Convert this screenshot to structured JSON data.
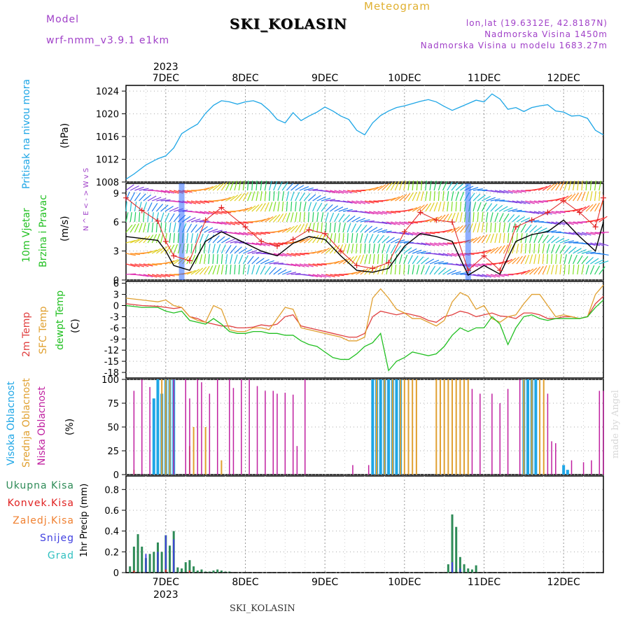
{
  "header": {
    "model_label": "Model",
    "model_name": "wrf-nmm_v3.9.1  e1km",
    "title": "SKI_KOLASIN",
    "meteogram_label": "Meteogram",
    "lonlat": "lon,lat (19.6312E, 42.8187N)",
    "altitude": "Nadmorska Visina 1450m",
    "model_altitude": "Nadmorska Visina u modelu 1683.27m"
  },
  "footer": {
    "station": "SKI_KOLASIN"
  },
  "watermark": "made by Angel",
  "colors": {
    "pressure": "#1ea6e6",
    "wind_gust": "#e02020",
    "wind_mean": "#000000",
    "temp_2m": "#e04040",
    "temp_sfc": "#e0a030",
    "dewpoint": "#22c022",
    "cloud_high": "#1ea6e6",
    "cloud_mid": "#e0a030",
    "cloud_low": "#c020a0",
    "precip_total": "#2e8b57",
    "precip_conv": "#e02020",
    "precip_frz": "#f08030",
    "precip_snow": "#4040e0",
    "precip_hail": "#30c0c0",
    "label_purple": "#a040c8"
  },
  "chart_data": [
    {
      "type": "line",
      "panel": "pressure",
      "ylabel": "Pritisak na nivou mora",
      "unit": "(hPa)",
      "yticks": [
        "1008",
        "1012",
        "1016",
        "1020",
        "1024"
      ],
      "ylim": [
        1008,
        1025
      ],
      "x_top_labels": [
        "7DEC",
        "8DEC",
        "9DEC",
        "10DEC",
        "11DEC",
        "12DEC"
      ],
      "x_top_year": "2023",
      "x": [
        6.5,
        6.6,
        6.75,
        6.9,
        7.0,
        7.1,
        7.2,
        7.3,
        7.4,
        7.5,
        7.6,
        7.7,
        7.8,
        7.9,
        8.0,
        8.1,
        8.2,
        8.3,
        8.4,
        8.5,
        8.6,
        8.7,
        8.8,
        8.9,
        9.0,
        9.1,
        9.2,
        9.3,
        9.4,
        9.5,
        9.6,
        9.7,
        9.8,
        9.9,
        10.0,
        10.1,
        10.2,
        10.3,
        10.4,
        10.5,
        10.6,
        10.7,
        10.8,
        10.9,
        11.0,
        11.1,
        11.2,
        11.3,
        11.4,
        11.5,
        11.6,
        11.7,
        11.8,
        11.9,
        12.0,
        12.1,
        12.2,
        12.3,
        12.4,
        12.5
      ],
      "series": [
        {
          "values": [
            1008.5,
            1009.4,
            1011,
            1012.1,
            1012.6,
            1014,
            1016.5,
            1017.4,
            1018.2,
            1020.1,
            1021.5,
            1022.3,
            1022.1,
            1021.7,
            1022.1,
            1022.3,
            1021.8,
            1020.6,
            1019,
            1018.4,
            1020.2,
            1018.8,
            1019.6,
            1020.3,
            1021.2,
            1020.5,
            1019.6,
            1019,
            1017.1,
            1016.3,
            1018.4,
            1019.7,
            1020.5,
            1021.1,
            1021.4,
            1021.8,
            1022.2,
            1022.5,
            1022.1,
            1021.3,
            1020.6,
            1021.2,
            1021.8,
            1022.4,
            1022.1,
            1023.5,
            1022.6,
            1020.8,
            1021.1,
            1020.4,
            1021.1,
            1021.4,
            1021.6,
            1020.5,
            1020.3,
            1019.6,
            1019.7,
            1019.2,
            1017.1,
            1016.3
          ]
        }
      ]
    },
    {
      "type": "line",
      "panel": "wind",
      "ylabel": "10m Vjetar",
      "ylabel2": "Brzina i Pravac",
      "unit": "(m/s)",
      "compass": "N ^ E < - > W v S",
      "yticks": [
        "0",
        "3",
        "6",
        "9"
      ],
      "ylim": [
        0,
        10
      ],
      "x": [
        6.5,
        6.7,
        6.9,
        7.0,
        7.1,
        7.3,
        7.5,
        7.7,
        8.0,
        8.2,
        8.4,
        8.6,
        8.8,
        9.0,
        9.2,
        9.4,
        9.6,
        9.8,
        10.0,
        10.2,
        10.4,
        10.6,
        10.8,
        11.0,
        11.2,
        11.4,
        11.6,
        11.8,
        12.0,
        12.2,
        12.4,
        12.5
      ],
      "series": [
        {
          "name": "gust",
          "values": [
            8.5,
            7.2,
            6.1,
            4,
            2.5,
            2,
            6.2,
            7.5,
            5.5,
            4,
            3.5,
            4.2,
            5.2,
            4.8,
            3,
            1.5,
            1.2,
            1.8,
            5,
            7,
            6.2,
            6,
            1,
            2.5,
            1,
            5.5,
            6.2,
            7,
            8.2,
            7,
            5.5,
            8.5
          ]
        },
        {
          "name": "mean",
          "values": [
            4.5,
            4.3,
            4.1,
            3,
            1.5,
            1,
            4,
            5,
            3.8,
            3,
            2.5,
            3.8,
            4.5,
            4.2,
            2.5,
            1,
            0.8,
            1.2,
            3.5,
            4.8,
            4.5,
            4,
            0.5,
            1.5,
            0.6,
            4,
            4.7,
            5,
            6.2,
            4.5,
            3,
            6
          ]
        }
      ]
    },
    {
      "type": "line",
      "panel": "temperature",
      "labels": [
        "2m Temp",
        "SFC Temp",
        "dewpt Temp"
      ],
      "unit": "(C)",
      "yticks": [
        "-18",
        "-15",
        "-12",
        "-9",
        "-6",
        "-3",
        "0",
        "3",
        "6"
      ],
      "ylim": [
        -19.5,
        6.5
      ],
      "x": [
        6.5,
        6.7,
        6.9,
        7.0,
        7.1,
        7.2,
        7.3,
        7.4,
        7.5,
        7.6,
        7.7,
        7.8,
        7.9,
        8.0,
        8.1,
        8.2,
        8.3,
        8.4,
        8.5,
        8.6,
        8.7,
        8.8,
        8.9,
        9.0,
        9.1,
        9.2,
        9.3,
        9.4,
        9.5,
        9.6,
        9.7,
        9.8,
        9.9,
        10.0,
        10.1,
        10.2,
        10.3,
        10.4,
        10.5,
        10.6,
        10.7,
        10.8,
        10.9,
        11.0,
        11.1,
        11.2,
        11.3,
        11.4,
        11.5,
        11.6,
        11.7,
        11.8,
        11.9,
        12.0,
        12.1,
        12.2,
        12.3,
        12.4,
        12.5
      ],
      "series": [
        {
          "name": "2m Temp",
          "values": [
            0.5,
            0,
            -0.2,
            -0.5,
            -0.8,
            -0.5,
            -3,
            -3.5,
            -4.5,
            -5,
            -5.5,
            -5.5,
            -6,
            -6,
            -5.8,
            -5.2,
            -5.5,
            -5,
            -3,
            -2.5,
            -5.5,
            -6,
            -6.5,
            -7,
            -7.5,
            -8,
            -8.5,
            -8.5,
            -7.5,
            -3,
            -1.5,
            -2,
            -2.5,
            -2,
            -2.5,
            -3,
            -4,
            -4.5,
            -3,
            -2.5,
            -1.5,
            -2,
            -3,
            -2.5,
            -2,
            -2.8,
            -3,
            -3.5,
            -2,
            -2,
            -2.5,
            -3.5,
            -3.5,
            -3,
            -3,
            -3.5,
            -3,
            0.5,
            2.5
          ]
        },
        {
          "name": "SFC Temp",
          "values": [
            2,
            1.5,
            1,
            1.5,
            0,
            -0.5,
            -3,
            -4,
            -4.5,
            0,
            -1,
            -6.5,
            -7,
            -7,
            -6,
            -6,
            -6.5,
            -3.5,
            -0.5,
            -1,
            -6,
            -6.5,
            -7,
            -7.5,
            -8,
            -8.5,
            -9.5,
            -9.5,
            -8.5,
            2,
            4.5,
            2,
            -1,
            -2,
            -3.5,
            -3.5,
            -4.5,
            -5.5,
            -4,
            1,
            3.5,
            2.5,
            -1,
            0,
            -3.5,
            -4.5,
            -3,
            -2.5,
            0.5,
            3,
            3,
            0,
            -3,
            -2.5,
            -3,
            -3.5,
            -3,
            3,
            5.5
          ]
        },
        {
          "name": "dewpt Temp",
          "values": [
            0,
            -0.5,
            -0.5,
            -1.5,
            -2,
            -1.5,
            -4,
            -4.5,
            -5,
            -3.5,
            -5,
            -7,
            -7.5,
            -7.5,
            -7,
            -7,
            -7.5,
            -7.5,
            -8,
            -8,
            -9.5,
            -10.5,
            -11,
            -12.5,
            -14,
            -14.5,
            -14.5,
            -13,
            -11,
            -10,
            -7.5,
            -17.5,
            -15,
            -14,
            -12.5,
            -13,
            -13.5,
            -13,
            -11,
            -8,
            -6,
            -7,
            -6,
            -6,
            -3,
            -5,
            -10.5,
            -6,
            -3,
            -2.5,
            -3.5,
            -4,
            -3.5,
            -3.5,
            -3.5,
            -3.5,
            -3,
            -0.5,
            1.5
          ]
        }
      ]
    },
    {
      "type": "bar",
      "panel": "clouds",
      "labels": [
        "Visoka Oblacnost",
        "Srednja Oblacnost",
        "Niska Oblacnost"
      ],
      "unit": "(%)",
      "yticks": [
        "0",
        "25",
        "50",
        "75",
        "100"
      ],
      "ylim": [
        0,
        100
      ],
      "series": [
        {
          "name": "Visoka Oblacnost",
          "x": [
            6.85,
            6.9,
            6.95,
            7.0,
            7.05,
            7.1,
            9.6,
            9.65,
            9.7,
            9.75,
            9.8,
            9.85,
            9.9,
            9.95,
            11.5,
            11.55,
            11.6,
            11.65,
            12.0,
            12.05
          ],
          "values": [
            80,
            100,
            85,
            100,
            100,
            100,
            100,
            100,
            100,
            100,
            100,
            100,
            100,
            100,
            100,
            100,
            100,
            100,
            10,
            5
          ]
        },
        {
          "name": "Srednja Oblacnost",
          "x": [
            6.6,
            6.95,
            7.0,
            7.05,
            7.3,
            7.35,
            7.5,
            7.7,
            9.65,
            9.75,
            9.85,
            9.95,
            10.0,
            10.05,
            10.1,
            10.15,
            10.4,
            10.45,
            10.5,
            10.55,
            10.6,
            10.65,
            10.7,
            10.75,
            10.8,
            11.5,
            11.6,
            11.7,
            11.75
          ],
          "values": [
            5,
            100,
            100,
            100,
            30,
            50,
            50,
            15,
            100,
            100,
            100,
            100,
            100,
            100,
            100,
            100,
            100,
            100,
            100,
            100,
            100,
            100,
            100,
            100,
            100,
            100,
            100,
            100,
            100
          ]
        },
        {
          "name": "Niska Oblacnost",
          "x": [
            6.6,
            6.7,
            6.8,
            7.1,
            7.25,
            7.3,
            7.4,
            7.45,
            7.55,
            7.65,
            7.8,
            7.85,
            7.95,
            8.05,
            8.15,
            8.25,
            8.35,
            8.4,
            8.5,
            8.6,
            8.65,
            8.75,
            9.35,
            9.55,
            10.85,
            10.95,
            11.1,
            11.2,
            11.3,
            11.45,
            11.8,
            11.85,
            11.9,
            12.1,
            12.25,
            12.35,
            12.45,
            12.5
          ],
          "values": [
            88,
            100,
            92,
            100,
            100,
            80,
            100,
            97,
            85,
            100,
            100,
            91,
            100,
            100,
            93,
            88,
            88,
            85,
            86,
            84,
            30,
            100,
            10,
            10,
            90,
            85,
            85,
            75,
            90,
            100,
            85,
            35,
            33,
            15,
            13,
            15,
            88,
            88
          ]
        }
      ]
    },
    {
      "type": "bar",
      "panel": "precipitation",
      "labels": [
        "Ukupna Kisa",
        "Konvek.Kisa",
        "Zaledj.Kisa",
        "Snijeg",
        "Grad"
      ],
      "unit": "1hr Precip (mm)",
      "yticks": [
        "0",
        "0.2",
        "0.4",
        "0.6",
        "0.8"
      ],
      "ylim": [
        0,
        0.93
      ],
      "x_bottom_labels": [
        "7DEC",
        "8DEC",
        "9DEC",
        "10DEC",
        "11DEC",
        "12DEC"
      ],
      "x_bottom_year": "2023",
      "series": [
        {
          "name": "Ukupna Kisa",
          "x": [
            6.55,
            6.6,
            6.65,
            6.7,
            6.75,
            6.8,
            6.85,
            6.9,
            6.95,
            7.0,
            7.05,
            7.1,
            7.15,
            7.2,
            7.25,
            7.3,
            7.35,
            7.4,
            7.45,
            7.5,
            7.55,
            7.6,
            7.65,
            7.7,
            7.75,
            7.8,
            10.55,
            10.6,
            10.65,
            10.7,
            10.75,
            10.8,
            10.85,
            10.9
          ],
          "values": [
            0.06,
            0.25,
            0.37,
            0.25,
            0.14,
            0.18,
            0.2,
            0.29,
            0.2,
            0.36,
            0.26,
            0.4,
            0.05,
            0.04,
            0.1,
            0.12,
            0.06,
            0.02,
            0.03,
            0.01,
            0.01,
            0.02,
            0.03,
            0.02,
            0.01,
            0.01,
            0.08,
            0.56,
            0.44,
            0.15,
            0.08,
            0.04,
            0.03,
            0.07
          ]
        },
        {
          "name": "Snijeg",
          "x": [
            6.75,
            6.9,
            7.0,
            7.1,
            10.6,
            10.7
          ],
          "values": [
            0.18,
            0.2,
            0.36,
            0.32,
            0.1,
            0.04
          ]
        },
        {
          "name": "Konvek.Kisa",
          "x": [
            6.6,
            7.0,
            7.3
          ],
          "values": [
            0.02,
            0.03,
            0.02
          ]
        }
      ]
    }
  ]
}
